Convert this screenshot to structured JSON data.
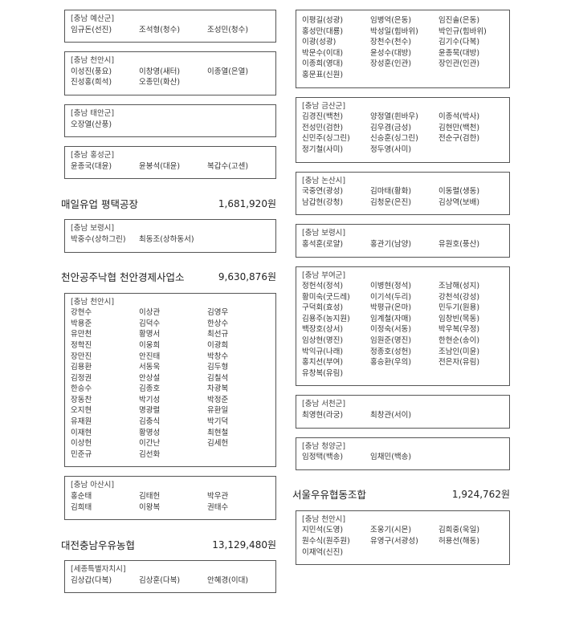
{
  "columns": {
    "left": [
      {
        "type": "box",
        "region": "[충남 예산군]",
        "names": [
          "임규돈(선진)",
          "조석형(청수)",
          "조성민(청수)"
        ]
      },
      {
        "type": "box",
        "region": "[충남 천안시]",
        "names": [
          "이성진(풍요)",
          "이창영(새터)",
          "이종열(은열)",
          "진성홍(희석)",
          "오종민(화산)"
        ]
      },
      {
        "type": "box",
        "region": "[충남 태안군]",
        "names": [
          "오장열(산풍)"
        ]
      },
      {
        "type": "box",
        "region": "[충남 홍성군]",
        "names": [
          "윤종국(대윤)",
          "윤봉석(대윤)",
          "복갑수(고센)"
        ]
      },
      {
        "type": "heading",
        "title": "매일유업 평택공장",
        "amount": "1,681,920원"
      },
      {
        "type": "box",
        "region": "[충남 보령시]",
        "names": [
          "박중수(상하그린)",
          "최동조(상하동서)"
        ]
      },
      {
        "type": "heading",
        "title": "천안공주낙협 천안경제사업소",
        "amount": "9,630,876원"
      },
      {
        "type": "box",
        "region": "[충남 천안시]",
        "names": [
          "강현수",
          "이상관",
          "김영우",
          "박용준",
          "김덕수",
          "한상수",
          "유만천",
          "황명서",
          "최선규",
          "정학진",
          "이웅희",
          "이광희",
          "장만진",
          "안진태",
          "박창수",
          "김용환",
          "서동욱",
          "김두형",
          "김정권",
          "안상설",
          "김칠석",
          "한승수",
          "김종호",
          "차광복",
          "장동찬",
          "박기성",
          "박정준",
          "오지현",
          "명광렬",
          "유환일",
          "유재원",
          "김충식",
          "박기덕",
          "이재현",
          "황명성",
          "최현철",
          "이상헌",
          "이간난",
          "김세헌",
          "민준규",
          "김선화"
        ]
      },
      {
        "type": "box",
        "region": "[충남 아산시]",
        "names": [
          "홍순태",
          "김태헌",
          "박우관",
          "김희태",
          "이왕복",
          "권태수"
        ]
      },
      {
        "type": "heading",
        "title": "대전충남우유농협",
        "amount": "13,129,480원"
      },
      {
        "type": "box",
        "region": "[세종특별자치시]",
        "names": [
          "김상갑(다복)",
          "김상훈(다복)",
          "안혜경(이대)"
        ]
      }
    ],
    "right": [
      {
        "type": "box",
        "region": "",
        "names": [
          "이평길(성광)",
          "임병억(은동)",
          "임진솔(은동)",
          "홍성만(대룡)",
          "박성일(힘바위)",
          "박인규(힘바위)",
          "이광(성광)",
          "장천수(천수)",
          "김기수(다복)",
          "박문수(이대)",
          "윤성수(대방)",
          "윤종묵(대방)",
          "이종희(영대)",
          "장성훈(인관)",
          "장인관(인관)",
          "홍문표(신원)"
        ]
      },
      {
        "type": "box",
        "region": "[충남 금산군]",
        "names": [
          "김경진(백천)",
          "양정열(흰바우)",
          "이종석(박사)",
          "전성민(검한)",
          "김우겸(금성)",
          "김현만(백천)",
          "신민주(싱그린)",
          "신승훈(싱그린)",
          "전순구(검한)",
          "정기철(사미)",
          "정두영(사미)"
        ]
      },
      {
        "type": "box",
        "region": "[충남 논산시]",
        "names": [
          "국중연(광성)",
          "김마태(황화)",
          "이동렬(생동)",
          "남갑현(강청)",
          "김청운(은진)",
          "김상역(보배)"
        ]
      },
      {
        "type": "box",
        "region": "[충남 보령시]",
        "names": [
          "홍석훈(로얄)",
          "홍관기(남양)",
          "유원호(풍산)"
        ]
      },
      {
        "type": "box",
        "region": "[충남 부여군]",
        "names": [
          "정헌석(정석)",
          "이병현(정석)",
          "조남해(성지)",
          "황미숙(굿드레)",
          "이기석(두리)",
          "강천석(강성)",
          "구덕회(효성)",
          "박평규(온마)",
          "민두기(원용)",
          "김용주(농지원)",
          "임계철(자매)",
          "임창빈(목동)",
          "백장호(상서)",
          "이정숙(서동)",
          "박우복(우정)",
          "임상현(명진)",
          "임원준(명진)",
          "한현순(송이)",
          "박익규(나래)",
          "정종호(성헌)",
          "조남인(미윤)",
          "홍치선(부여)",
          "홍승환(우의)",
          "전은자(유림)",
          "유창복(유림)"
        ]
      },
      {
        "type": "box",
        "region": "[충남 서천군]",
        "names": [
          "최영현(라궁)",
          "최창관(서이)"
        ]
      },
      {
        "type": "box",
        "region": "[충남 청양군]",
        "names": [
          "임정택(백송)",
          "임채민(백송)"
        ]
      },
      {
        "type": "heading",
        "title": "서울우유협동조합",
        "amount": "1,924,762원"
      },
      {
        "type": "box",
        "region": "[충남 천안시]",
        "names": [
          "지민석(도영)",
          "조웅기(시몬)",
          "김희중(욱일)",
          "원수식(원주원)",
          "유영구(서광성)",
          "허용선(해동)",
          "이재억(신진)"
        ]
      }
    ]
  }
}
